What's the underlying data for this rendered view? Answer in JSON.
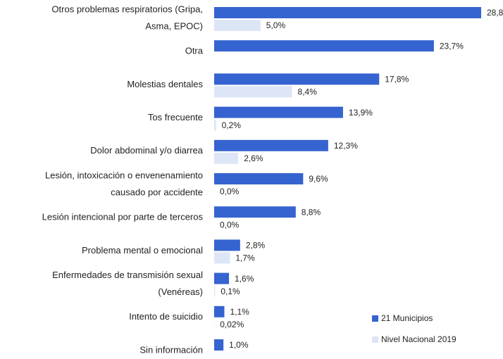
{
  "chart_data": {
    "type": "barh",
    "categories": [
      [
        "Otros problemas respiratorios (Gripa,",
        "Asma, EPOC)"
      ],
      [
        "Otra"
      ],
      [
        "Molestias dentales"
      ],
      [
        "Tos frecuente"
      ],
      [
        "Dolor abdominal y/o diarrea"
      ],
      [
        "Lesión, intoxicación o envenenamiento",
        "causado por accidente"
      ],
      [
        "Lesión intencional por parte de terceros"
      ],
      [
        "Problema mental o emocional"
      ],
      [
        "Enfermedades de transmisión sexual",
        "(Venéreas)"
      ],
      [
        "Intento de suicidio"
      ],
      [
        "Sin información"
      ]
    ],
    "series": [
      {
        "name": "21 Municipios",
        "color": "#3563d0",
        "values": [
          28.8,
          23.7,
          17.8,
          13.9,
          12.3,
          9.6,
          8.8,
          2.8,
          1.6,
          1.1,
          1.0
        ],
        "value_labels": [
          "28,8",
          "23,7%",
          "17,8%",
          "13,9%",
          "12,3%",
          "9,6%",
          "8,8%",
          "2,8%",
          "1,6%",
          "1,1%",
          "1,0%"
        ]
      },
      {
        "name": "Nivel Nacional 2019",
        "color": "#dde6f7",
        "values": [
          5.0,
          null,
          8.4,
          0.2,
          2.6,
          0.0,
          0.0,
          1.7,
          0.1,
          0.02,
          null
        ],
        "value_labels": [
          "5,0%",
          null,
          "8,4%",
          "0,2%",
          "2,6%",
          "0,0%",
          "0,0%",
          "1,7%",
          "0,1%",
          "0,02%",
          null
        ]
      }
    ],
    "legend": "lower right"
  }
}
